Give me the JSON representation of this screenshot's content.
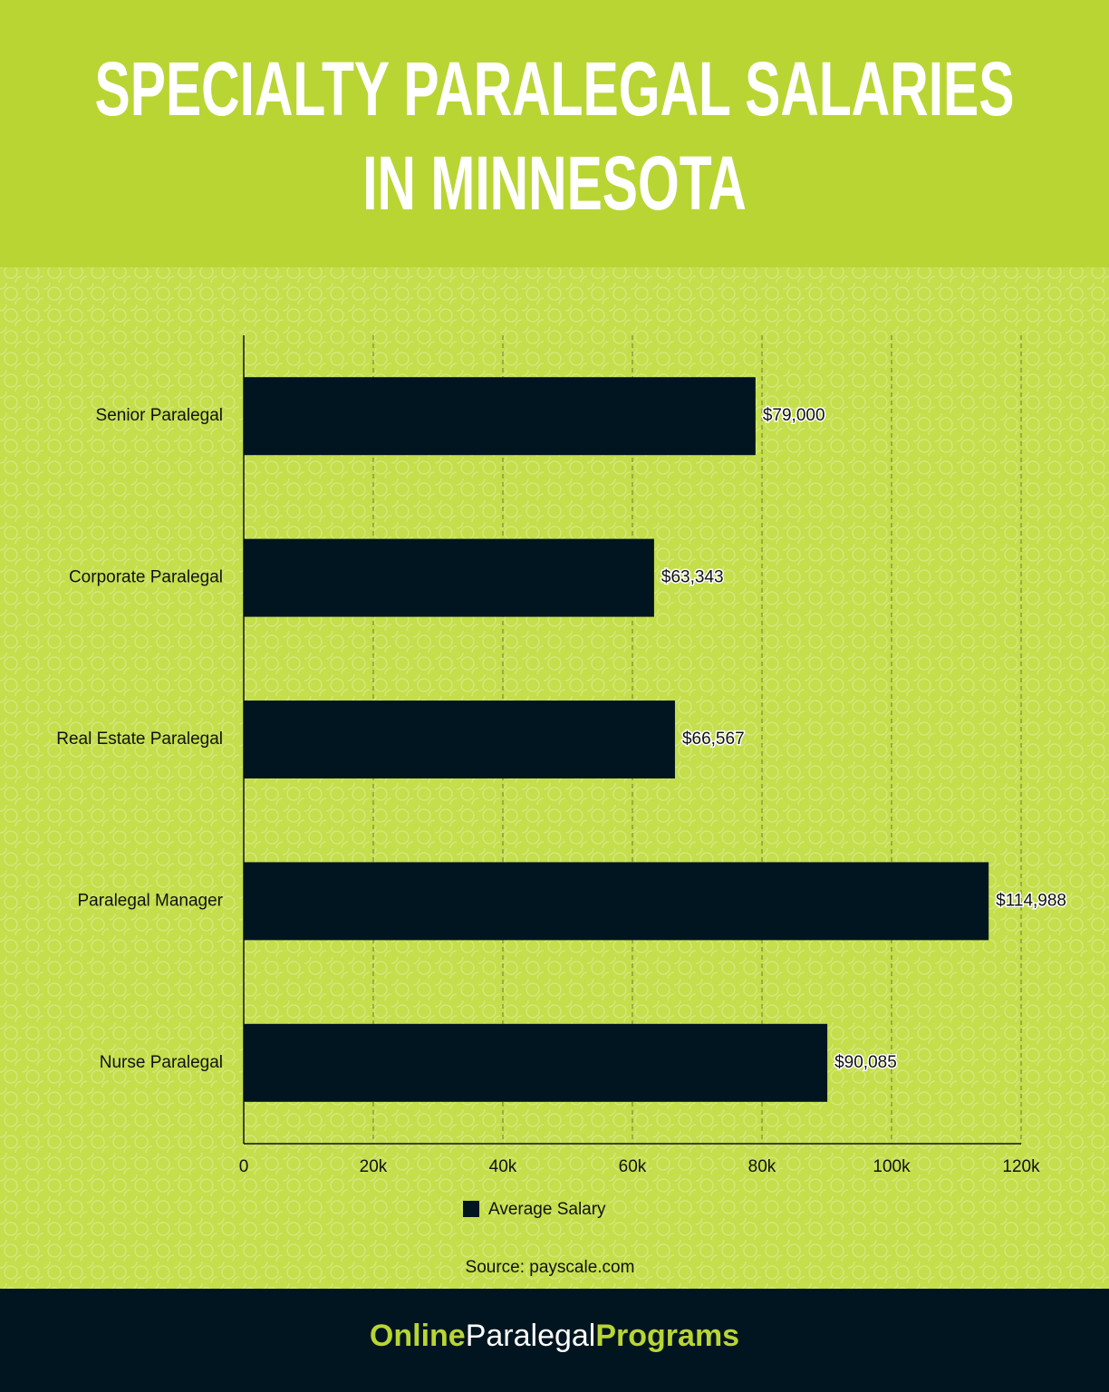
{
  "chart_data": {
    "type": "barh",
    "title": "SPECIALTY PARALEGAL SALARIES IN MINNESOTA",
    "categories": [
      "Senior Paralegal",
      "Corporate Paralegal",
      "Real Estate Paralegal",
      "Paralegal Manager",
      "Nurse Paralegal"
    ],
    "series": [
      {
        "name": "Average Salary",
        "color": "#011520",
        "values": [
          79000,
          63343,
          66567,
          114988,
          90085
        ],
        "value_labels": [
          "$79,000",
          "$63,343",
          "$66,567",
          "$114,988",
          "$90,085"
        ]
      }
    ],
    "xlim": [
      0,
      120000
    ],
    "xticks": [
      0,
      {
        "value": 20000,
        "label": "20k"
      },
      {
        "value": 40000,
        "label": "40k"
      },
      {
        "value": 60000,
        "label": "60k"
      },
      {
        "value": 80000,
        "label": "80k"
      },
      {
        "value": 100000,
        "label": "100k"
      },
      {
        "value": 120000,
        "label": "120k"
      }
    ],
    "grid": true,
    "legend": "bottom",
    "source": "Source: payscale.com"
  },
  "footer": {
    "brand": [
      "Online",
      "Paralegal",
      "Programs"
    ]
  }
}
